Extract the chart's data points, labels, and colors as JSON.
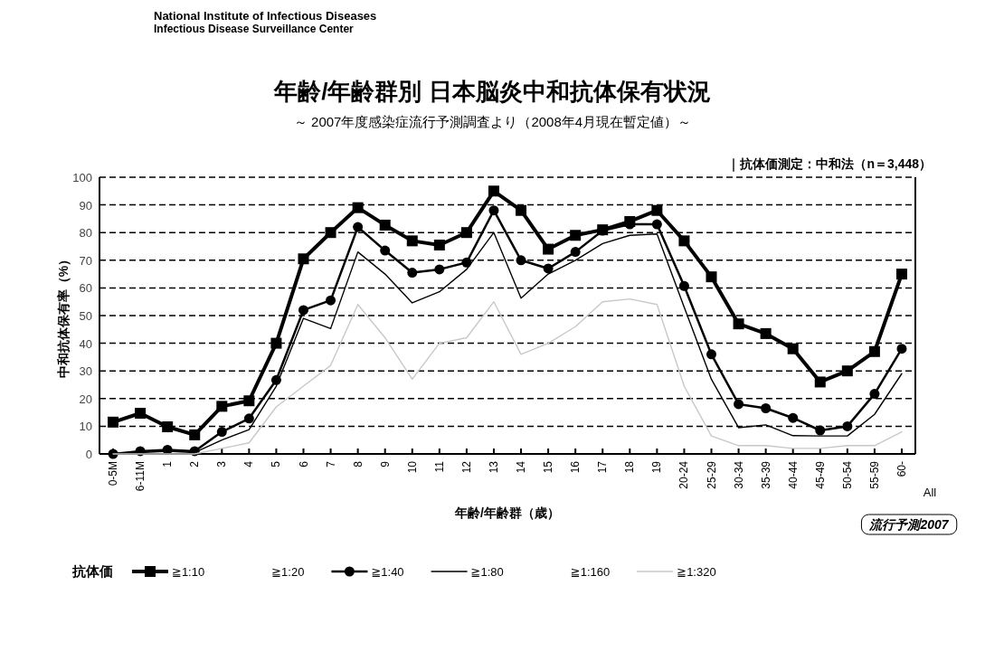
{
  "chart_data": {
    "type": "line",
    "title": "年齢/年齢群別 日本脳炎中和抗体保有状況",
    "subtitle": "～ 2007年度感染症流行予測調査より（2008年4月現在暫定値）～",
    "xlabel": "年齢/年齢群（歳）",
    "ylabel": "中和抗体保有率（%）",
    "legend_title": "抗体価",
    "annotations": [
      "National Institute of Infectious Diseases",
      "Infectious Disease Surveillance Center",
      "｜抗体価測定：中和法（n＝3,448）",
      "流行予測2007",
      "All"
    ],
    "categories": [
      "0-5M",
      "6-11M",
      "1",
      "2",
      "3",
      "4",
      "5",
      "6",
      "7",
      "8",
      "9",
      "10",
      "11",
      "12",
      "13",
      "14",
      "15",
      "16",
      "17",
      "18",
      "19",
      "20-24",
      "25-29",
      "30-34",
      "35-39",
      "40-44",
      "45-49",
      "50-54",
      "55-59",
      "60-"
    ],
    "ylim": [
      0,
      100
    ],
    "yticks": [
      0,
      10,
      20,
      30,
      40,
      50,
      60,
      70,
      80,
      90,
      100
    ],
    "grid": "y",
    "legend": "bottom",
    "series": [
      {
        "name": "≧1:10",
        "color": "#000000",
        "marker": "square",
        "values": [
          11.5,
          14.7,
          9.8,
          6.9,
          17.2,
          19.2,
          40,
          70.5,
          80,
          89,
          82.7,
          77,
          75.5,
          80,
          95,
          88,
          74,
          79,
          81,
          84,
          88,
          77,
          64,
          47,
          43.5,
          38,
          26,
          30,
          37,
          65
        ]
      },
      {
        "name": "≧1:20",
        "marker": "none",
        "values": [
          null,
          null,
          null,
          null,
          null,
          null,
          null,
          null,
          null,
          null,
          null,
          null,
          null,
          null,
          null,
          null,
          null,
          null,
          null,
          null,
          null,
          null,
          null,
          null,
          null,
          null,
          null,
          null,
          null,
          null
        ]
      },
      {
        "name": "≧1:40",
        "color": "#000000",
        "marker": "circle",
        "values": [
          0,
          1,
          1.5,
          1,
          8,
          12.8,
          26.7,
          52,
          55.5,
          82,
          73.5,
          65.5,
          66.7,
          69.2,
          88,
          70,
          67,
          73,
          80.7,
          83,
          83,
          60.7,
          36,
          18,
          16.5,
          13,
          8.5,
          10,
          21.7,
          38
        ]
      },
      {
        "name": "≧1:80",
        "color": "#000000",
        "marker": "none",
        "values": [
          0,
          0.5,
          1,
          0.5,
          5,
          8.8,
          24.5,
          49,
          45.3,
          73,
          65,
          54.6,
          58.6,
          66.7,
          80,
          56.3,
          65,
          70,
          76,
          79,
          79.5,
          53,
          27,
          9.5,
          10.5,
          6.6,
          6.5,
          6.5,
          14.3,
          29
        ]
      },
      {
        "name": "≧1:160",
        "marker": "none",
        "values": [
          null,
          null,
          null,
          null,
          null,
          null,
          null,
          null,
          null,
          null,
          null,
          null,
          null,
          null,
          null,
          null,
          null,
          null,
          null,
          null,
          null,
          null,
          null,
          null,
          null,
          null,
          null,
          null,
          null,
          null
        ]
      },
      {
        "name": "≧1:320",
        "color": "#c8c8c8",
        "marker": "none",
        "values": [
          0,
          0,
          0,
          0,
          2,
          4,
          17,
          24.5,
          32,
          54,
          42,
          27,
          40,
          42,
          55,
          36,
          40,
          46,
          55,
          56,
          54,
          24.5,
          6.5,
          3,
          3,
          2,
          2,
          3,
          3,
          8
        ]
      }
    ]
  }
}
